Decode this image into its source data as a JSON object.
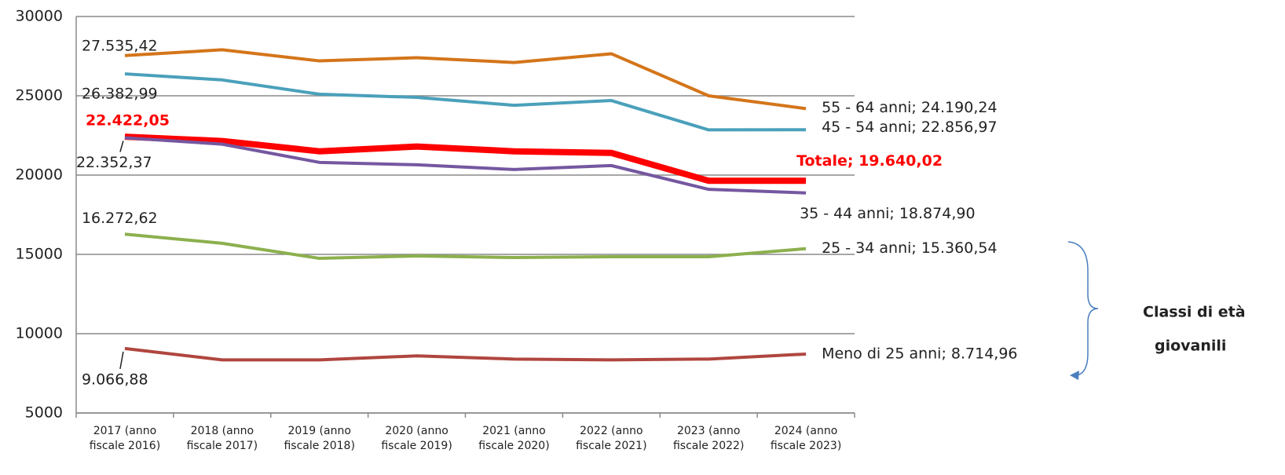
{
  "chart_data": {
    "type": "line",
    "categories": [
      "2017 (anno fiscale 2016)",
      "2018 (anno fiscale 2017)",
      "2019 (anno fiscale 2018)",
      "2020 (anno fiscale 2019)",
      "2021 (anno fiscale 2020)",
      "2022 (anno fiscale 2021)",
      "2023 (anno fiscale 2022)",
      "2024 (anno fiscale 2023)"
    ],
    "series": [
      {
        "name": "55 - 64 anni",
        "color": "#d4751a",
        "values": [
          27535.42,
          27900,
          27200,
          27400,
          27100,
          27650,
          25000,
          24190.24
        ],
        "value_labels": [
          "27.535,42",
          null,
          null,
          null,
          null,
          null,
          null,
          "55 - 64 anni; 24.190,24"
        ]
      },
      {
        "name": "45 - 54 anni",
        "color": "#4aa0bb",
        "values": [
          26382.99,
          26000,
          25100,
          24900,
          24400,
          24700,
          22850,
          22856.97
        ],
        "value_labels": [
          "26.382,99",
          null,
          null,
          null,
          null,
          null,
          null,
          "45 - 54 anni; 22.856,97"
        ]
      },
      {
        "name": "Totale",
        "color": "#ff0000",
        "values": [
          22422.05,
          22150,
          21500,
          21800,
          21500,
          21400,
          19640,
          19640.02
        ],
        "value_labels": [
          "22.422,05",
          null,
          null,
          null,
          null,
          null,
          null,
          "Totale; 19.640,02"
        ]
      },
      {
        "name": "35 - 44 anni",
        "color": "#7557a0",
        "values": [
          22352.37,
          21950,
          20800,
          20650,
          20350,
          20600,
          19100,
          18874.9
        ],
        "value_labels": [
          "22.352,37",
          null,
          null,
          null,
          null,
          null,
          null,
          "35 - 44 anni; 18.874,90"
        ]
      },
      {
        "name": "25 - 34 anni",
        "color": "#8cb04e",
        "values": [
          16272.62,
          15700,
          14750,
          14900,
          14800,
          14850,
          14850,
          15360.54
        ],
        "value_labels": [
          "16.272,62",
          null,
          null,
          null,
          null,
          null,
          null,
          "25 - 34 anni; 15.360,54"
        ]
      },
      {
        "name": "Meno di 25 anni",
        "color": "#b0463f",
        "values": [
          9066.88,
          8350,
          8350,
          8600,
          8400,
          8350,
          8400,
          8714.96
        ],
        "value_labels": [
          "9.066,88",
          null,
          null,
          null,
          null,
          null,
          null,
          "Meno di 25 anni; 8.714,96"
        ]
      }
    ],
    "ylim": [
      5000,
      30000
    ],
    "yticks": [
      5000,
      10000,
      15000,
      20000,
      25000,
      30000
    ],
    "grid": true,
    "annotation": [
      "Classi di età",
      "giovanili"
    ]
  }
}
